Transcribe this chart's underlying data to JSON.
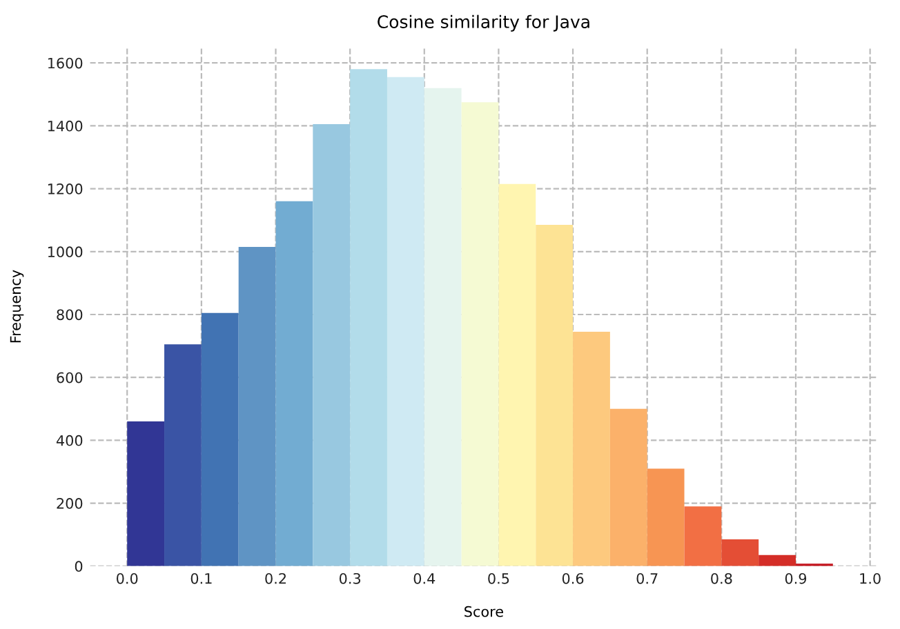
{
  "chart_data": {
    "type": "histogram",
    "title": "Cosine similarity for Java",
    "xlabel": "Score",
    "ylabel": "Frequency",
    "bins": [
      0.0,
      0.05,
      0.1,
      0.15,
      0.2,
      0.25,
      0.3,
      0.35,
      0.4,
      0.45,
      0.5,
      0.55,
      0.6,
      0.65,
      0.7,
      0.75,
      0.8,
      0.85,
      0.9,
      0.95
    ],
    "values": [
      460,
      705,
      805,
      1015,
      1160,
      1405,
      1580,
      1555,
      1520,
      1475,
      1215,
      1085,
      745,
      500,
      310,
      190,
      85,
      35,
      8
    ],
    "colors": [
      "#313695",
      "#3a54a5",
      "#4173b3",
      "#5f94c4",
      "#72acd2",
      "#98c8e0",
      "#b2dcea",
      "#cfeaf3",
      "#e5f4ee",
      "#f5fad3",
      "#fff5b0",
      "#fde394",
      "#fdc97e",
      "#fbb16a",
      "#f79553",
      "#f26f44",
      "#e44e35",
      "#d42d27",
      "#c4161f"
    ],
    "xlim": [
      -0.05,
      1.01
    ],
    "ylim": [
      0,
      1650
    ],
    "xticks": [
      {
        "value": 0.0,
        "label": "0.0"
      },
      0.1,
      0.2,
      0.3,
      0.4,
      0.5,
      0.6,
      0.7,
      0.8,
      0.9,
      {
        "value": 1.0,
        "label": "1.0"
      }
    ],
    "yticks": [
      0,
      200,
      400,
      600,
      800,
      1000,
      1200,
      1400,
      1600
    ],
    "grid": true
  }
}
